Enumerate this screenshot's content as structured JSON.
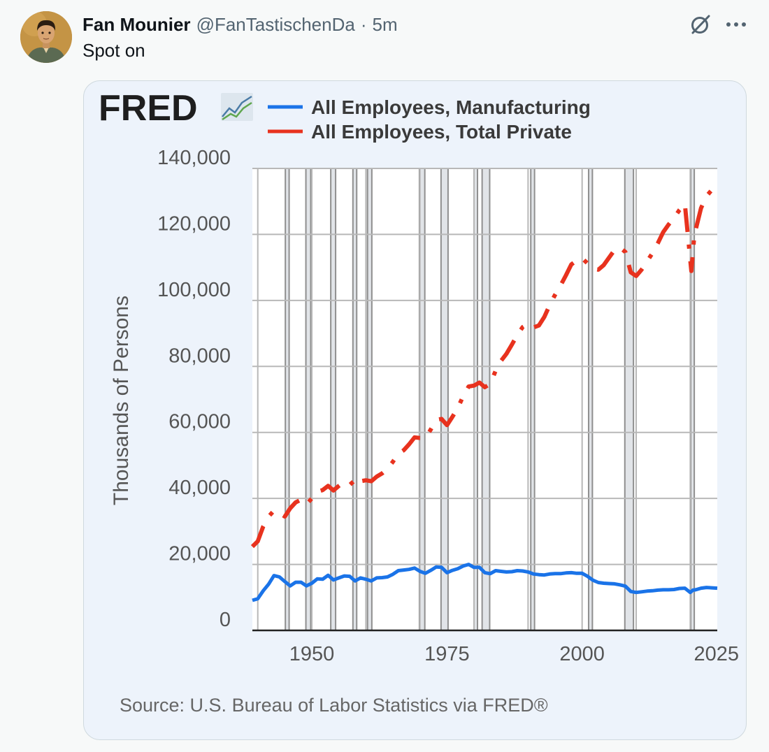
{
  "tweet": {
    "display_name": "Fan Mounier",
    "handle": "@FanTastischenDa",
    "separator": "·",
    "timestamp": "5m",
    "text": "Spot on",
    "icons": [
      "grok-icon",
      "more-icon"
    ]
  },
  "media": {
    "logo_text": "FRED",
    "source": "Source: U.S. Bureau of Labor Statistics via FRED®"
  },
  "chart_data": {
    "type": "line",
    "title": "",
    "xlabel": "",
    "ylabel": "Thousands of Persons",
    "xlim": [
      1939,
      2025
    ],
    "ylim": [
      0,
      140000
    ],
    "x_ticks": [
      "1950",
      "1975",
      "2000",
      "2025"
    ],
    "y_ticks": [
      "0",
      "20,000",
      "40,000",
      "60,000",
      "80,000",
      "100,000",
      "120,000",
      "140,000"
    ],
    "grid": true,
    "legend": "top",
    "recession_shading": [
      [
        1945.1,
        1945.8
      ],
      [
        1948.9,
        1949.8
      ],
      [
        1953.5,
        1954.4
      ],
      [
        1957.6,
        1958.3
      ],
      [
        1960.3,
        1961.1
      ],
      [
        1969.9,
        1970.9
      ],
      [
        1973.9,
        1975.2
      ],
      [
        1980.0,
        1980.5
      ],
      [
        1981.5,
        1982.9
      ],
      [
        1990.5,
        1991.2
      ],
      [
        2001.2,
        2001.9
      ],
      [
        2007.9,
        2009.5
      ],
      [
        2020.1,
        2020.4
      ]
    ],
    "series": [
      {
        "name": "All Employees, Manufacturing",
        "color": "#1a73e8",
        "style": "solid",
        "points": [
          [
            1939,
            9100
          ],
          [
            1940,
            9600
          ],
          [
            1941,
            12000
          ],
          [
            1942,
            14000
          ],
          [
            1943,
            16600
          ],
          [
            1944,
            16200
          ],
          [
            1945,
            14800
          ],
          [
            1946,
            13500
          ],
          [
            1947,
            14600
          ],
          [
            1948,
            14600
          ],
          [
            1949,
            13500
          ],
          [
            1950,
            14300
          ],
          [
            1951,
            15600
          ],
          [
            1952,
            15500
          ],
          [
            1953,
            16700
          ],
          [
            1954,
            15300
          ],
          [
            1955,
            15900
          ],
          [
            1956,
            16500
          ],
          [
            1957,
            16400
          ],
          [
            1958,
            15000
          ],
          [
            1959,
            15900
          ],
          [
            1960,
            15500
          ],
          [
            1961,
            15000
          ],
          [
            1962,
            15900
          ],
          [
            1963,
            16000
          ],
          [
            1964,
            16200
          ],
          [
            1965,
            17000
          ],
          [
            1966,
            18100
          ],
          [
            1967,
            18300
          ],
          [
            1968,
            18500
          ],
          [
            1969,
            18900
          ],
          [
            1970,
            17900
          ],
          [
            1971,
            17300
          ],
          [
            1972,
            18200
          ],
          [
            1973,
            19200
          ],
          [
            1974,
            19100
          ],
          [
            1975,
            17500
          ],
          [
            1976,
            18200
          ],
          [
            1977,
            18700
          ],
          [
            1978,
            19500
          ],
          [
            1979,
            20000
          ],
          [
            1980,
            19100
          ],
          [
            1981,
            19100
          ],
          [
            1982,
            17500
          ],
          [
            1983,
            17200
          ],
          [
            1984,
            18100
          ],
          [
            1985,
            17900
          ],
          [
            1986,
            17700
          ],
          [
            1987,
            17800
          ],
          [
            1988,
            18100
          ],
          [
            1989,
            18000
          ],
          [
            1990,
            17700
          ],
          [
            1991,
            17100
          ],
          [
            1992,
            16900
          ],
          [
            1993,
            16800
          ],
          [
            1994,
            17100
          ],
          [
            1995,
            17200
          ],
          [
            1996,
            17200
          ],
          [
            1997,
            17400
          ],
          [
            1998,
            17500
          ],
          [
            1999,
            17300
          ],
          [
            2000,
            17300
          ],
          [
            2001,
            16400
          ],
          [
            2002,
            15200
          ],
          [
            2003,
            14500
          ],
          [
            2004,
            14300
          ],
          [
            2005,
            14200
          ],
          [
            2006,
            14100
          ],
          [
            2007,
            13800
          ],
          [
            2008,
            13400
          ],
          [
            2009,
            11800
          ],
          [
            2010,
            11500
          ],
          [
            2011,
            11700
          ],
          [
            2012,
            11900
          ],
          [
            2013,
            12000
          ],
          [
            2014,
            12200
          ],
          [
            2015,
            12300
          ],
          [
            2016,
            12300
          ],
          [
            2017,
            12400
          ],
          [
            2018,
            12700
          ],
          [
            2019,
            12800
          ],
          [
            2020,
            11500
          ],
          [
            2020.5,
            12200
          ],
          [
            2021,
            12300
          ],
          [
            2022,
            12800
          ],
          [
            2023,
            13000
          ],
          [
            2024,
            12900
          ],
          [
            2025,
            12800
          ]
        ]
      },
      {
        "name": "All Employees, Total Private",
        "color": "#e8321e",
        "style": "dash-dot",
        "points": [
          [
            1939,
            25400
          ],
          [
            1940,
            27000
          ],
          [
            1941,
            31500
          ],
          [
            1942,
            34500
          ],
          [
            1943,
            36300
          ],
          [
            1944,
            35600
          ],
          [
            1945,
            34500
          ],
          [
            1946,
            37000
          ],
          [
            1947,
            38800
          ],
          [
            1948,
            39600
          ],
          [
            1949,
            38200
          ],
          [
            1950,
            40000
          ],
          [
            1951,
            42000
          ],
          [
            1952,
            42500
          ],
          [
            1953,
            43800
          ],
          [
            1954,
            42400
          ],
          [
            1955,
            43800
          ],
          [
            1956,
            45100
          ],
          [
            1957,
            45300
          ],
          [
            1958,
            43500
          ],
          [
            1959,
            45200
          ],
          [
            1960,
            45500
          ],
          [
            1961,
            45200
          ],
          [
            1962,
            46600
          ],
          [
            1963,
            47600
          ],
          [
            1964,
            49000
          ],
          [
            1965,
            51100
          ],
          [
            1966,
            53500
          ],
          [
            1967,
            54600
          ],
          [
            1968,
            56400
          ],
          [
            1969,
            58500
          ],
          [
            1970,
            58300
          ],
          [
            1971,
            58300
          ],
          [
            1972,
            60900
          ],
          [
            1973,
            63800
          ],
          [
            1974,
            64100
          ],
          [
            1975,
            62200
          ],
          [
            1976,
            64700
          ],
          [
            1977,
            67400
          ],
          [
            1978,
            71000
          ],
          [
            1979,
            73900
          ],
          [
            1980,
            74200
          ],
          [
            1981,
            75100
          ],
          [
            1982,
            73700
          ],
          [
            1983,
            74700
          ],
          [
            1984,
            78700
          ],
          [
            1985,
            81700
          ],
          [
            1986,
            83800
          ],
          [
            1987,
            86600
          ],
          [
            1988,
            89500
          ],
          [
            1989,
            91900
          ],
          [
            1990,
            92900
          ],
          [
            1991,
            91800
          ],
          [
            1992,
            92400
          ],
          [
            1993,
            95000
          ],
          [
            1994,
            98600
          ],
          [
            1995,
            101700
          ],
          [
            1996,
            104500
          ],
          [
            1997,
            107600
          ],
          [
            1998,
            110900
          ],
          [
            1999,
            112100
          ],
          [
            2000,
            112800
          ],
          [
            2001,
            111200
          ],
          [
            2002,
            109600
          ],
          [
            2003,
            109300
          ],
          [
            2004,
            110700
          ],
          [
            2005,
            113000
          ],
          [
            2006,
            115300
          ],
          [
            2007,
            116000
          ],
          [
            2008,
            114700
          ],
          [
            2009,
            108500
          ],
          [
            2010,
            107400
          ],
          [
            2011,
            109300
          ],
          [
            2012,
            111800
          ],
          [
            2013,
            114300
          ],
          [
            2014,
            117300
          ],
          [
            2015,
            120700
          ],
          [
            2016,
            123000
          ],
          [
            2017,
            125000
          ],
          [
            2018,
            127400
          ],
          [
            2019,
            129300
          ],
          [
            2020.2,
            108900
          ],
          [
            2020.8,
            120500
          ],
          [
            2021,
            121400
          ],
          [
            2022,
            128000
          ],
          [
            2023,
            131600
          ],
          [
            2024,
            133500
          ],
          [
            2025,
            134800
          ]
        ]
      }
    ]
  }
}
